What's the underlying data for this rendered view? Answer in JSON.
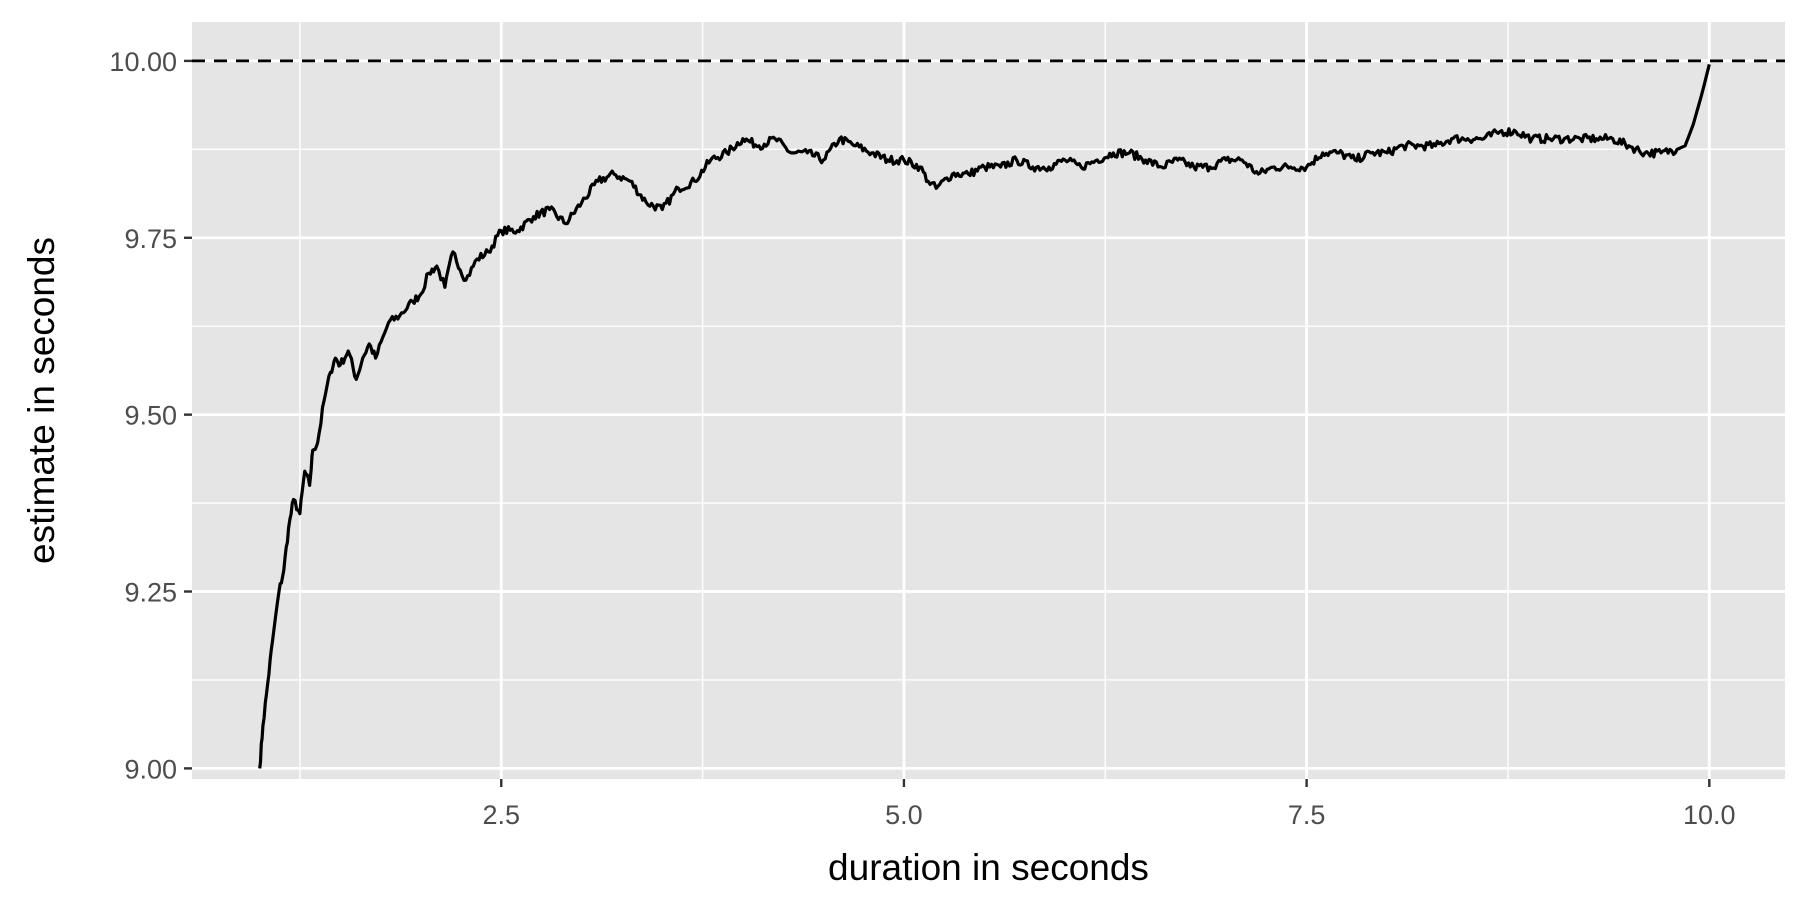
{
  "chart_data": {
    "type": "line",
    "title": "",
    "xlabel": "duration in seconds",
    "ylabel": "estimate in seconds",
    "xlim": [
      0.58,
      10.47
    ],
    "ylim": [
      8.985,
      10.055
    ],
    "x_ticks": [
      2.5,
      5.0,
      7.5,
      10.0
    ],
    "x_tick_labels": [
      "2.5",
      "5.0",
      "7.5",
      "10.0"
    ],
    "x_minor_ticks": [
      1.25,
      3.75,
      6.25,
      8.75
    ],
    "y_ticks": [
      9.0,
      9.25,
      9.5,
      9.75,
      10.0
    ],
    "y_tick_labels": [
      "9.00",
      "9.25",
      "9.50",
      "9.75",
      "10.00"
    ],
    "y_minor_ticks": [
      9.125,
      9.375,
      9.625,
      9.875
    ],
    "grid": true,
    "panel_background": "#e5e5e5",
    "grid_color": "#ffffff",
    "series": [
      {
        "color": "#000000",
        "x": [
          1.0,
          1.02,
          1.05,
          1.08,
          1.12,
          1.15,
          1.18,
          1.21,
          1.25,
          1.28,
          1.31,
          1.33,
          1.36,
          1.4,
          1.44,
          1.47,
          1.5,
          1.55,
          1.6,
          1.64,
          1.68,
          1.72,
          1.8,
          1.87,
          1.95,
          2.0,
          2.05,
          2.1,
          2.15,
          2.2,
          2.28,
          2.35,
          2.42,
          2.5,
          2.6,
          2.7,
          2.8,
          2.9,
          3.0,
          3.1,
          3.2,
          3.3,
          3.4,
          3.5,
          3.6,
          3.7,
          3.8,
          3.9,
          4.0,
          4.1,
          4.2,
          4.3,
          4.4,
          4.5,
          4.6,
          4.7,
          4.8,
          4.9,
          5.0,
          5.1,
          5.15,
          5.2,
          5.3,
          5.4,
          5.5,
          5.6,
          5.7,
          5.8,
          5.9,
          6.0,
          6.1,
          6.2,
          6.3,
          6.4,
          6.5,
          6.6,
          6.7,
          6.8,
          6.9,
          7.0,
          7.1,
          7.2,
          7.3,
          7.4,
          7.5,
          7.6,
          7.7,
          7.8,
          7.9,
          8.0,
          8.1,
          8.2,
          8.3,
          8.4,
          8.5,
          8.6,
          8.7,
          8.8,
          8.9,
          9.0,
          9.1,
          9.2,
          9.3,
          9.4,
          9.5,
          9.6,
          9.7,
          9.8,
          9.85,
          9.9,
          9.95,
          10.0
        ],
        "y": [
          9.0,
          9.06,
          9.12,
          9.18,
          9.25,
          9.28,
          9.34,
          9.38,
          9.36,
          9.42,
          9.4,
          9.45,
          9.46,
          9.52,
          9.56,
          9.58,
          9.57,
          9.59,
          9.55,
          9.58,
          9.6,
          9.58,
          9.63,
          9.64,
          9.66,
          9.67,
          9.7,
          9.71,
          9.68,
          9.73,
          9.69,
          9.72,
          9.73,
          9.76,
          9.76,
          9.78,
          9.79,
          9.77,
          9.8,
          9.83,
          9.84,
          9.83,
          9.8,
          9.79,
          9.82,
          9.83,
          9.86,
          9.87,
          9.89,
          9.88,
          9.89,
          9.87,
          9.87,
          9.86,
          9.89,
          9.88,
          9.87,
          9.86,
          9.86,
          9.85,
          9.83,
          9.82,
          9.84,
          9.84,
          9.85,
          9.85,
          9.86,
          9.85,
          9.85,
          9.86,
          9.85,
          9.86,
          9.87,
          9.87,
          9.86,
          9.85,
          9.86,
          9.85,
          9.85,
          9.86,
          9.86,
          9.84,
          9.85,
          9.85,
          9.85,
          9.87,
          9.87,
          9.86,
          9.87,
          9.87,
          9.88,
          9.88,
          9.88,
          9.89,
          9.89,
          9.89,
          9.9,
          9.9,
          9.89,
          9.89,
          9.89,
          9.89,
          9.89,
          9.89,
          9.88,
          9.87,
          9.87,
          9.875,
          9.88,
          9.91,
          9.95,
          9.995
        ]
      }
    ],
    "reference_lines": [
      {
        "orientation": "horizontal",
        "y": 10.0,
        "style": "dashed",
        "color": "#000000"
      }
    ]
  }
}
